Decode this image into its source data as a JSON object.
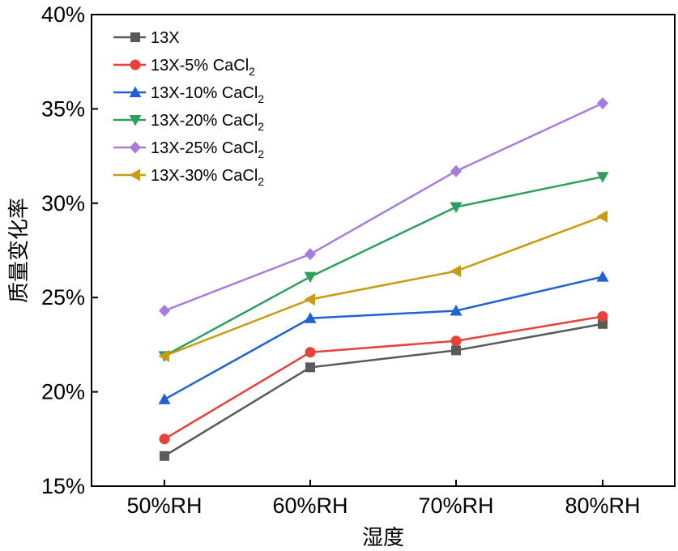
{
  "chart_data": {
    "type": "line",
    "title": "",
    "xlabel": "湿度",
    "ylabel": "质量变化率",
    "categories": [
      "50%RH",
      "60%RH",
      "70%RH",
      "80%RH"
    ],
    "ylim": [
      15,
      40
    ],
    "yticks": [
      15,
      20,
      25,
      30,
      35,
      40
    ],
    "ytick_labels": [
      "15%",
      "20%",
      "25%",
      "30%",
      "35%",
      "40%"
    ],
    "legend_position": "top-left",
    "series": [
      {
        "name": "13X",
        "label_main": "13X",
        "label_sub": "",
        "marker": "square",
        "color": "#5a5a5a",
        "values": [
          16.6,
          21.3,
          22.2,
          23.6
        ]
      },
      {
        "name": "13X-5% CaCl2",
        "label_main": "13X-5% CaCl",
        "label_sub": "2",
        "marker": "circle",
        "color": "#e8413c",
        "values": [
          17.5,
          22.1,
          22.7,
          24.0
        ]
      },
      {
        "name": "13X-10% CaCl2",
        "label_main": "13X-10% CaCl",
        "label_sub": "2",
        "marker": "triangle-up",
        "color": "#1f62d0",
        "values": [
          19.6,
          23.9,
          24.3,
          26.1
        ]
      },
      {
        "name": "13X-20% CaCl2",
        "label_main": "13X-20% CaCl",
        "label_sub": "2",
        "marker": "triangle-down",
        "color": "#2e9e5e",
        "values": [
          21.9,
          26.1,
          29.8,
          31.4
        ]
      },
      {
        "name": "13X-25% CaCl2",
        "label_main": "13X-25% CaCl",
        "label_sub": "2",
        "marker": "diamond",
        "color": "#a77cdc",
        "values": [
          24.3,
          27.3,
          31.7,
          35.3
        ]
      },
      {
        "name": "13X-30% CaCl2",
        "label_main": "13X-30% CaCl",
        "label_sub": "2",
        "marker": "triangle-left",
        "color": "#c89b12",
        "values": [
          21.9,
          24.9,
          26.4,
          29.3
        ]
      }
    ]
  }
}
